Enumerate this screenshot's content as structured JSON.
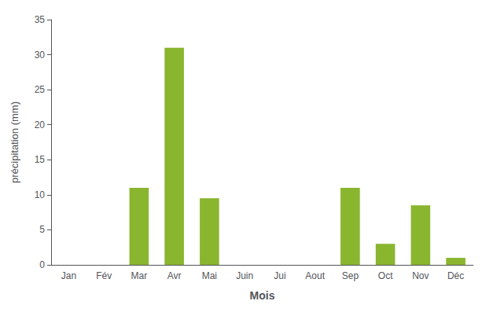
{
  "chart_data": {
    "type": "bar",
    "categories": [
      "Jan",
      "Fév",
      "Mar",
      "Avr",
      "Mai",
      "Juin",
      "Jui",
      "Aout",
      "Sep",
      "Oct",
      "Nov",
      "Déc"
    ],
    "values": [
      0,
      0,
      11,
      31,
      9.5,
      0,
      0,
      0,
      11,
      3,
      8.5,
      1
    ],
    "color": "#8ab52e",
    "xlabel": "Mois",
    "ylabel": "précipitation (mm)",
    "ylim": [
      0,
      35
    ],
    "yticks": [
      0,
      5,
      10,
      15,
      20,
      25,
      30,
      35
    ],
    "grid": false
  }
}
